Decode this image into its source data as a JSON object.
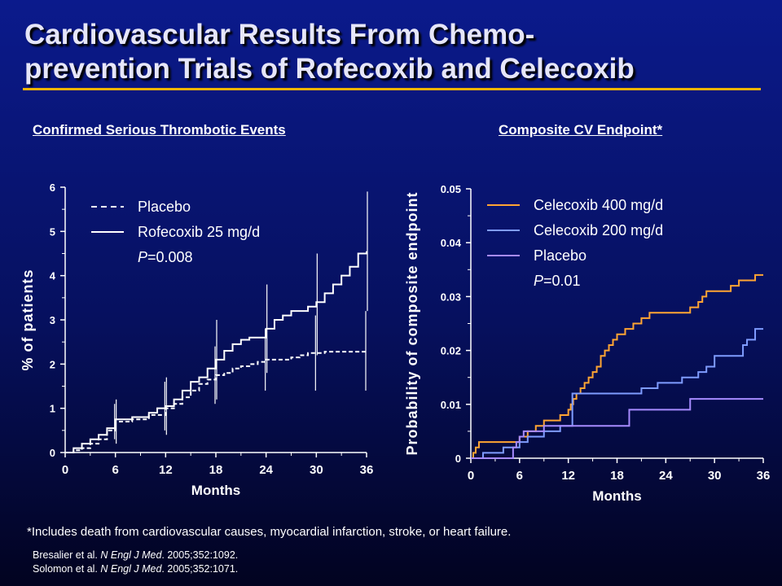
{
  "slide": {
    "title_line1": "Cardiovascular Results From Chemo-",
    "title_line2": "prevention Trials of Rofecoxib and Celecoxib",
    "footnote": "*Includes death from cardiovascular causes, myocardial infarction, stroke, or heart failure.",
    "references": [
      {
        "authors": "Bresalier et al. ",
        "journal": "N Engl J Med",
        "detail": ". 2005;352:1092."
      },
      {
        "authors": "Solomon et al. ",
        "journal": "N Engl J Med",
        "detail": ". 2005;352:1071."
      }
    ],
    "colors": {
      "accent_rule": "#f0b400",
      "text": "#ffffff"
    }
  },
  "chart_data": [
    {
      "type": "line",
      "title": "Confirmed Serious Thrombotic Events",
      "xlabel": "Months",
      "ylabel": "% of patients",
      "xlim": [
        0,
        36
      ],
      "ylim": [
        0,
        6
      ],
      "xticks": [
        0,
        6,
        12,
        18,
        24,
        30,
        36
      ],
      "yticks": [
        0,
        1,
        2,
        3,
        4,
        5,
        6
      ],
      "legend_position": "top-left",
      "p_value": {
        "prefix": "P",
        "value": "=0.008"
      },
      "series": [
        {
          "name": "Placebo",
          "style": "dashed",
          "color": "#ffffff",
          "points": [
            [
              0,
              0
            ],
            [
              1,
              0.05
            ],
            [
              2,
              0.1
            ],
            [
              3,
              0.2
            ],
            [
              4,
              0.3
            ],
            [
              5,
              0.5
            ],
            [
              6,
              0.7
            ],
            [
              8,
              0.75
            ],
            [
              10,
              0.85
            ],
            [
              12,
              1.0
            ],
            [
              13,
              1.1
            ],
            [
              14,
              1.25
            ],
            [
              15,
              1.4
            ],
            [
              16,
              1.55
            ],
            [
              17,
              1.65
            ],
            [
              18,
              1.75
            ],
            [
              19,
              1.8
            ],
            [
              20,
              1.9
            ],
            [
              21,
              1.95
            ],
            [
              22,
              2.0
            ],
            [
              23,
              2.05
            ],
            [
              24,
              2.1
            ],
            [
              27,
              2.15
            ],
            [
              28,
              2.2
            ],
            [
              29,
              2.25
            ],
            [
              31,
              2.28
            ],
            [
              36,
              2.28
            ]
          ],
          "error_bars": [
            [
              6,
              0.7,
              0.3,
              1.1
            ],
            [
              12,
              1.0,
              0.5,
              1.6
            ],
            [
              18,
              1.75,
              1.1,
              2.4
            ],
            [
              24,
              2.1,
              1.4,
              2.8
            ],
            [
              30,
              2.25,
              1.4,
              3.1
            ],
            [
              36,
              2.28,
              1.4,
              3.2
            ]
          ]
        },
        {
          "name": "Rofecoxib 25 mg/d",
          "style": "solid",
          "color": "#ffffff",
          "points": [
            [
              0,
              0
            ],
            [
              1,
              0.1
            ],
            [
              2,
              0.2
            ],
            [
              3,
              0.3
            ],
            [
              4,
              0.4
            ],
            [
              5,
              0.55
            ],
            [
              6,
              0.75
            ],
            [
              8,
              0.8
            ],
            [
              10,
              0.9
            ],
            [
              11,
              1.0
            ],
            [
              12,
              1.05
            ],
            [
              13,
              1.2
            ],
            [
              14,
              1.4
            ],
            [
              15,
              1.6
            ],
            [
              16,
              1.7
            ],
            [
              17,
              1.9
            ],
            [
              18,
              2.1
            ],
            [
              19,
              2.3
            ],
            [
              20,
              2.45
            ],
            [
              21,
              2.55
            ],
            [
              22,
              2.6
            ],
            [
              24,
              2.8
            ],
            [
              25,
              3.0
            ],
            [
              26,
              3.1
            ],
            [
              27,
              3.2
            ],
            [
              29,
              3.3
            ],
            [
              30,
              3.4
            ],
            [
              31,
              3.6
            ],
            [
              32,
              3.8
            ],
            [
              33,
              4.0
            ],
            [
              34,
              4.2
            ],
            [
              35,
              4.5
            ],
            [
              36,
              4.55
            ]
          ],
          "error_bars": [
            [
              6,
              0.75,
              0.2,
              1.2
            ],
            [
              12,
              1.05,
              0.4,
              1.7
            ],
            [
              18,
              2.1,
              1.2,
              3.0
            ],
            [
              24,
              2.8,
              1.8,
              3.8
            ],
            [
              30,
              3.4,
              2.2,
              4.5
            ],
            [
              36,
              4.55,
              3.2,
              5.9
            ]
          ]
        }
      ]
    },
    {
      "type": "line",
      "title": "Composite CV Endpoint",
      "title_suffix": "*",
      "xlabel": "Months",
      "ylabel": "Probability of composite endpoint",
      "xlim": [
        0,
        36
      ],
      "ylim": [
        0,
        0.05
      ],
      "xticks": [
        0,
        6,
        12,
        18,
        24,
        30,
        36
      ],
      "yticks": [
        0,
        0.01,
        0.02,
        0.03,
        0.04,
        0.05
      ],
      "ytick_labels": [
        "0",
        "0.01",
        "0.02",
        "0.03",
        "0.04",
        "0.05"
      ],
      "legend_position": "top-left",
      "p_value": {
        "prefix": "P",
        "value": "=0.01"
      },
      "series": [
        {
          "name": "Celecoxib 400 mg/d",
          "style": "solid",
          "color": "#ffa533",
          "points": [
            [
              0,
              0
            ],
            [
              0.3,
              0.001
            ],
            [
              0.6,
              0.002
            ],
            [
              1,
              0.003
            ],
            [
              5,
              0.003
            ],
            [
              6,
              0.004
            ],
            [
              7,
              0.005
            ],
            [
              8,
              0.006
            ],
            [
              9,
              0.007
            ],
            [
              10,
              0.007
            ],
            [
              11,
              0.008
            ],
            [
              12,
              0.009
            ],
            [
              12.3,
              0.01
            ],
            [
              12.6,
              0.011
            ],
            [
              13,
              0.012
            ],
            [
              13.5,
              0.013
            ],
            [
              14,
              0.014
            ],
            [
              14.5,
              0.015
            ],
            [
              15,
              0.016
            ],
            [
              15.5,
              0.017
            ],
            [
              16,
              0.019
            ],
            [
              16.5,
              0.02
            ],
            [
              17,
              0.021
            ],
            [
              17.5,
              0.022
            ],
            [
              18,
              0.023
            ],
            [
              19,
              0.024
            ],
            [
              20,
              0.025
            ],
            [
              21,
              0.026
            ],
            [
              22,
              0.027
            ],
            [
              27,
              0.028
            ],
            [
              28,
              0.029
            ],
            [
              28.5,
              0.03
            ],
            [
              29,
              0.031
            ],
            [
              32,
              0.032
            ],
            [
              33,
              0.033
            ],
            [
              35,
              0.034
            ],
            [
              36,
              0.034
            ]
          ],
          "error_bars": []
        },
        {
          "name": "Celecoxib 200 mg/d",
          "style": "solid",
          "color": "#7f9cff",
          "points": [
            [
              0,
              0
            ],
            [
              1.5,
              0.001
            ],
            [
              4,
              0.002
            ],
            [
              6,
              0.003
            ],
            [
              7,
              0.004
            ],
            [
              9,
              0.005
            ],
            [
              11,
              0.006
            ],
            [
              12.5,
              0.012
            ],
            [
              21,
              0.013
            ],
            [
              23,
              0.014
            ],
            [
              26,
              0.015
            ],
            [
              28,
              0.016
            ],
            [
              29,
              0.017
            ],
            [
              30,
              0.019
            ],
            [
              33.5,
              0.021
            ],
            [
              34,
              0.022
            ],
            [
              35,
              0.024
            ],
            [
              36,
              0.024
            ]
          ],
          "error_bars": []
        },
        {
          "name": "Placebo",
          "style": "solid",
          "color": "#a78bff",
          "points": [
            [
              0,
              0
            ],
            [
              5,
              0
            ],
            [
              5.2,
              0.002
            ],
            [
              5.6,
              0.003
            ],
            [
              6,
              0.004
            ],
            [
              6.5,
              0.005
            ],
            [
              9,
              0.006
            ],
            [
              18,
              0.006
            ],
            [
              19.5,
              0.009
            ],
            [
              26,
              0.009
            ],
            [
              27,
              0.011
            ],
            [
              36,
              0.011
            ]
          ],
          "error_bars": []
        }
      ]
    }
  ]
}
